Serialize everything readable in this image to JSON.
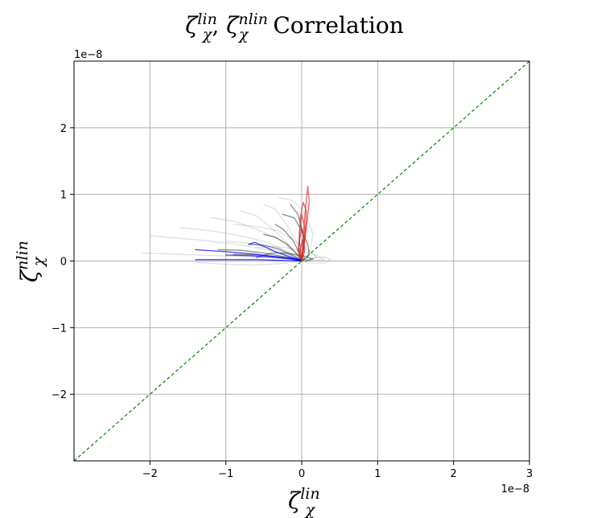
{
  "chart_data": {
    "type": "line",
    "title": {
      "zeta": "ζ",
      "sup_lin": "lin",
      "sub_chi": "χ",
      "separator": ", ",
      "sup_nlin": "nlin",
      "suffix": " Correlation"
    },
    "xlabel": {
      "base": "ζ",
      "sup": "lin",
      "sub": "χ"
    },
    "ylabel": {
      "base": "ζ",
      "sup": "nlin",
      "sub": "χ"
    },
    "x_scale_label": "1e−8",
    "y_scale_label": "1e−8",
    "xlim": [
      -3.0,
      3.0
    ],
    "ylim": [
      -3.0,
      3.0
    ],
    "xticks": [
      -2,
      -1,
      0,
      1,
      2,
      3
    ],
    "yticks": [
      -2,
      -1,
      0,
      1,
      2
    ],
    "xtick_labels": [
      "−2",
      "−1",
      "0",
      "1",
      "2",
      "3"
    ],
    "ytick_labels": [
      "−2",
      "−1",
      "0",
      "1",
      "2"
    ],
    "grid": true,
    "reference_line": {
      "x": [
        -3.0,
        3.0
      ],
      "y": [
        -3.0,
        3.0
      ],
      "color": "#008000",
      "style": "dashed"
    },
    "colors": {
      "gray": "#7f7f7f",
      "black": "#000000",
      "blue": "#0000ff",
      "red": "#d62728"
    },
    "series": [
      {
        "color_key": "gray",
        "opacity": 0.25,
        "x": [
          -2.0,
          -1.7,
          -1.3,
          -0.9,
          -0.5,
          -0.2,
          0.0
        ],
        "y": [
          0.38,
          0.35,
          0.31,
          0.26,
          0.18,
          0.1,
          0.02
        ]
      },
      {
        "color_key": "gray",
        "opacity": 0.25,
        "x": [
          -2.1,
          -1.6,
          -1.1,
          -0.7,
          -0.3,
          0.0
        ],
        "y": [
          0.12,
          0.1,
          0.08,
          0.06,
          0.04,
          0.01
        ]
      },
      {
        "color_key": "gray",
        "opacity": 0.25,
        "x": [
          -1.6,
          -1.3,
          -0.9,
          -0.5,
          -0.2,
          0.0
        ],
        "y": [
          0.5,
          0.47,
          0.4,
          0.3,
          0.15,
          0.03
        ]
      },
      {
        "color_key": "gray",
        "opacity": 0.25,
        "x": [
          -1.2,
          -0.9,
          -0.6,
          -0.3,
          -0.1,
          0.0
        ],
        "y": [
          0.65,
          0.6,
          0.48,
          0.32,
          0.15,
          0.02
        ]
      },
      {
        "color_key": "gray",
        "opacity": 0.25,
        "x": [
          -0.8,
          -0.6,
          -0.4,
          -0.2,
          0.0
        ],
        "y": [
          0.75,
          0.68,
          0.5,
          0.28,
          0.03
        ]
      },
      {
        "color_key": "gray",
        "opacity": 0.25,
        "x": [
          -0.5,
          -0.35,
          -0.2,
          -0.05,
          0.0
        ],
        "y": [
          0.85,
          0.78,
          0.55,
          0.25,
          0.02
        ]
      },
      {
        "color_key": "gray",
        "opacity": 0.25,
        "x": [
          -0.3,
          -0.1,
          0.05,
          0.15,
          0.1,
          0.0
        ],
        "y": [
          0.95,
          0.9,
          0.7,
          0.4,
          0.15,
          0.02
        ]
      },
      {
        "color_key": "gray",
        "opacity": 0.25,
        "x": [
          0.0,
          0.15,
          0.3,
          0.38,
          0.3,
          0.1,
          0.0
        ],
        "y": [
          0.0,
          0.05,
          0.06,
          0.02,
          -0.03,
          -0.03,
          0.0
        ]
      },
      {
        "color_key": "gray",
        "opacity": 0.25,
        "x": [
          -1.4,
          -1.0,
          -0.6,
          -0.3,
          0.0
        ],
        "y": [
          -0.02,
          -0.05,
          -0.06,
          -0.04,
          0.0
        ]
      },
      {
        "color_key": "gray",
        "opacity": 0.25,
        "x": [
          -1.0,
          -0.8,
          -0.5,
          -0.2,
          0.0
        ],
        "y": [
          0.3,
          0.28,
          0.22,
          0.12,
          0.01
        ]
      },
      {
        "color_key": "gray",
        "opacity": 0.25,
        "x": [
          -0.9,
          -0.6,
          -0.3,
          -0.1,
          0.1,
          0.2,
          0.05
        ],
        "y": [
          0.55,
          0.52,
          0.45,
          0.3,
          0.15,
          0.05,
          0.0
        ]
      },
      {
        "color_key": "gray",
        "opacity": 0.25,
        "x": [
          -0.6,
          -0.4,
          -0.2,
          0.0,
          0.2,
          0.3,
          0.1
        ],
        "y": [
          0.2,
          0.22,
          0.2,
          0.15,
          0.08,
          0.02,
          0.0
        ]
      },
      {
        "color_key": "black",
        "opacity": 0.45,
        "x": [
          -0.7,
          -0.5,
          -0.3,
          -0.15,
          0.0
        ],
        "y": [
          0.25,
          0.24,
          0.18,
          0.1,
          0.01
        ]
      },
      {
        "color_key": "black",
        "opacity": 0.45,
        "x": [
          -0.5,
          -0.35,
          -0.2,
          -0.08,
          0.0
        ],
        "y": [
          0.4,
          0.36,
          0.26,
          0.12,
          0.01
        ]
      },
      {
        "color_key": "black",
        "opacity": 0.45,
        "x": [
          -0.35,
          -0.25,
          -0.12,
          -0.04,
          0.0
        ],
        "y": [
          0.55,
          0.48,
          0.32,
          0.14,
          0.01
        ]
      },
      {
        "color_key": "black",
        "opacity": 0.45,
        "x": [
          -0.9,
          -0.6,
          -0.3,
          -0.1,
          0.0
        ],
        "y": [
          0.1,
          0.09,
          0.06,
          0.03,
          0.0
        ]
      },
      {
        "color_key": "black",
        "opacity": 0.45,
        "x": [
          -0.25,
          -0.1,
          0.0,
          0.08,
          0.1,
          0.05,
          0.0
        ],
        "y": [
          0.7,
          0.65,
          0.45,
          0.25,
          0.1,
          0.03,
          0.0
        ]
      },
      {
        "color_key": "black",
        "opacity": 0.45,
        "x": [
          -0.6,
          -0.4,
          -0.2,
          0.0,
          0.15,
          0.05
        ],
        "y": [
          0.05,
          0.12,
          0.12,
          0.08,
          0.03,
          0.0
        ]
      },
      {
        "color_key": "black",
        "opacity": 0.45,
        "x": [
          -0.15,
          -0.05,
          0.02,
          0.04,
          0.0
        ],
        "y": [
          0.85,
          0.7,
          0.4,
          0.15,
          0.0
        ]
      },
      {
        "color_key": "black",
        "opacity": 0.45,
        "x": [
          -1.1,
          -0.8,
          -0.5,
          -0.2,
          0.0
        ],
        "y": [
          0.17,
          0.16,
          0.12,
          0.06,
          0.01
        ]
      },
      {
        "color_key": "blue",
        "opacity": 0.75,
        "x": [
          -1.4,
          -1.0,
          -0.6,
          -0.3,
          0.0
        ],
        "y": [
          0.17,
          0.14,
          0.1,
          0.06,
          0.02
        ]
      },
      {
        "color_key": "blue",
        "opacity": 0.75,
        "x": [
          -1.4,
          -1.0,
          -0.6,
          -0.3,
          0.0
        ],
        "y": [
          0.02,
          0.02,
          0.02,
          0.01,
          0.0
        ]
      },
      {
        "color_key": "blue",
        "opacity": 0.75,
        "x": [
          -0.7,
          -0.62,
          -0.5,
          -0.35,
          -0.15,
          0.0
        ],
        "y": [
          0.25,
          0.28,
          0.22,
          0.14,
          0.06,
          0.01
        ]
      },
      {
        "color_key": "blue",
        "opacity": 0.75,
        "x": [
          -1.0,
          -0.7,
          -0.4,
          -0.15,
          0.0
        ],
        "y": [
          0.09,
          0.08,
          0.06,
          0.03,
          0.0
        ]
      },
      {
        "color_key": "red",
        "opacity": 0.7,
        "x": [
          0.0,
          0.02,
          0.05,
          0.08,
          0.1,
          0.06,
          0.02,
          0.0
        ],
        "y": [
          0.0,
          0.4,
          0.8,
          1.12,
          0.9,
          0.5,
          0.15,
          0.0
        ]
      },
      {
        "color_key": "red",
        "opacity": 0.7,
        "x": [
          0.0,
          -0.03,
          -0.02,
          0.02,
          0.06,
          0.05,
          0.02,
          0.0
        ],
        "y": [
          0.0,
          0.3,
          0.65,
          0.88,
          0.75,
          0.45,
          0.15,
          0.0
        ]
      },
      {
        "color_key": "red",
        "opacity": 0.7,
        "x": [
          0.0,
          -0.04,
          -0.03,
          0.0,
          0.04,
          0.03,
          0.0
        ],
        "y": [
          0.0,
          0.2,
          0.45,
          0.7,
          0.5,
          0.25,
          0.0
        ]
      },
      {
        "color_key": "red",
        "opacity": 0.7,
        "x": [
          0.0,
          -0.05,
          -0.03,
          0.0,
          0.03,
          0.02,
          0.0
        ],
        "y": [
          0.0,
          0.15,
          0.3,
          0.5,
          0.35,
          0.15,
          0.0
        ]
      },
      {
        "color_key": "red",
        "opacity": 0.7,
        "x": [
          0.0,
          -0.03,
          -0.02,
          0.01,
          0.02,
          0.0
        ],
        "y": [
          0.0,
          0.08,
          0.18,
          0.32,
          0.2,
          0.0
        ]
      }
    ]
  }
}
